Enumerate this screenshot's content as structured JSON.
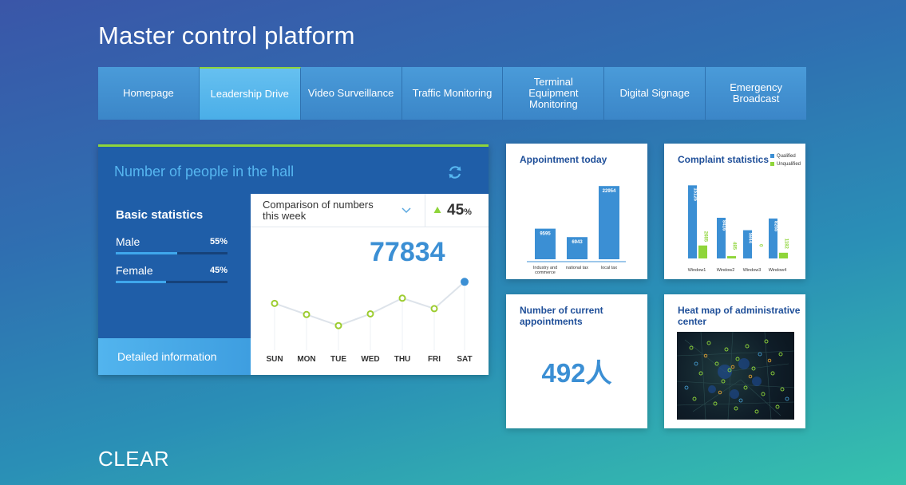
{
  "app": {
    "title": "Master control platform",
    "logo": "CLEAR"
  },
  "nav": {
    "items": [
      {
        "label": "Homepage",
        "active": false
      },
      {
        "label": "Leadership Drive",
        "active": true
      },
      {
        "label": "Video Surveillance",
        "active": false
      },
      {
        "label": "Traffic Monitoring",
        "active": false
      },
      {
        "label": "Terminal Equipment Monitoring",
        "active": false
      },
      {
        "label": "Digital Signage",
        "active": false
      },
      {
        "label": "Emergency Broadcast",
        "active": false
      }
    ]
  },
  "hall": {
    "title": "Number of people in the hall",
    "refresh_icon": "refresh-icon",
    "basic": {
      "title": "Basic statistics",
      "male_label": "Male",
      "male_pct": "55%",
      "male_value": 0.55,
      "female_label": "Female",
      "female_pct": "45%",
      "female_value": 0.45
    },
    "detail_label": "Detailed information",
    "compare": {
      "select_label": "Comparison of numbers this week",
      "change_value": "45",
      "change_unit": "%",
      "total": "77834",
      "days": [
        "SUN",
        "MON",
        "TUE",
        "WED",
        "THU",
        "FRI",
        "SAT"
      ]
    }
  },
  "cards": {
    "appointment_today": {
      "title": "Appointment today"
    },
    "complaints": {
      "title": "Complaint statistics",
      "legend": [
        "Qualified",
        "Unqualified"
      ]
    },
    "current": {
      "title": "Number of current appointments",
      "value": "492人"
    },
    "heatmap": {
      "title": "Heat map of administrative center"
    }
  },
  "colors": {
    "accent": "#3b8fd4",
    "green": "#8fd53a",
    "dark_blue": "#1f5ea8"
  },
  "chart_data": [
    {
      "type": "line",
      "categories": [
        "SUN",
        "MON",
        "TUE",
        "WED",
        "THU",
        "FRI",
        "SAT"
      ],
      "values": [
        52,
        35,
        18,
        36,
        60,
        44,
        85
      ],
      "ylim": [
        0,
        100
      ],
      "grid": false
    },
    {
      "type": "bar",
      "categories": [
        "Industry and commerce",
        "national tax",
        "local tax"
      ],
      "values": [
        9595,
        6943,
        22954
      ],
      "ylim": [
        0,
        25000
      ]
    },
    {
      "type": "bar",
      "categories": [
        "Window1",
        "Window2",
        "Window3",
        "Window4"
      ],
      "series": [
        {
          "name": "Qualified",
          "values": [
            15126,
            8416,
            5844,
            8265
          ]
        },
        {
          "name": "Unqualified",
          "values": [
            2685,
            485,
            0,
            1182
          ]
        }
      ],
      "ylim": [
        0,
        16500
      ],
      "legend": "top-right"
    }
  ]
}
